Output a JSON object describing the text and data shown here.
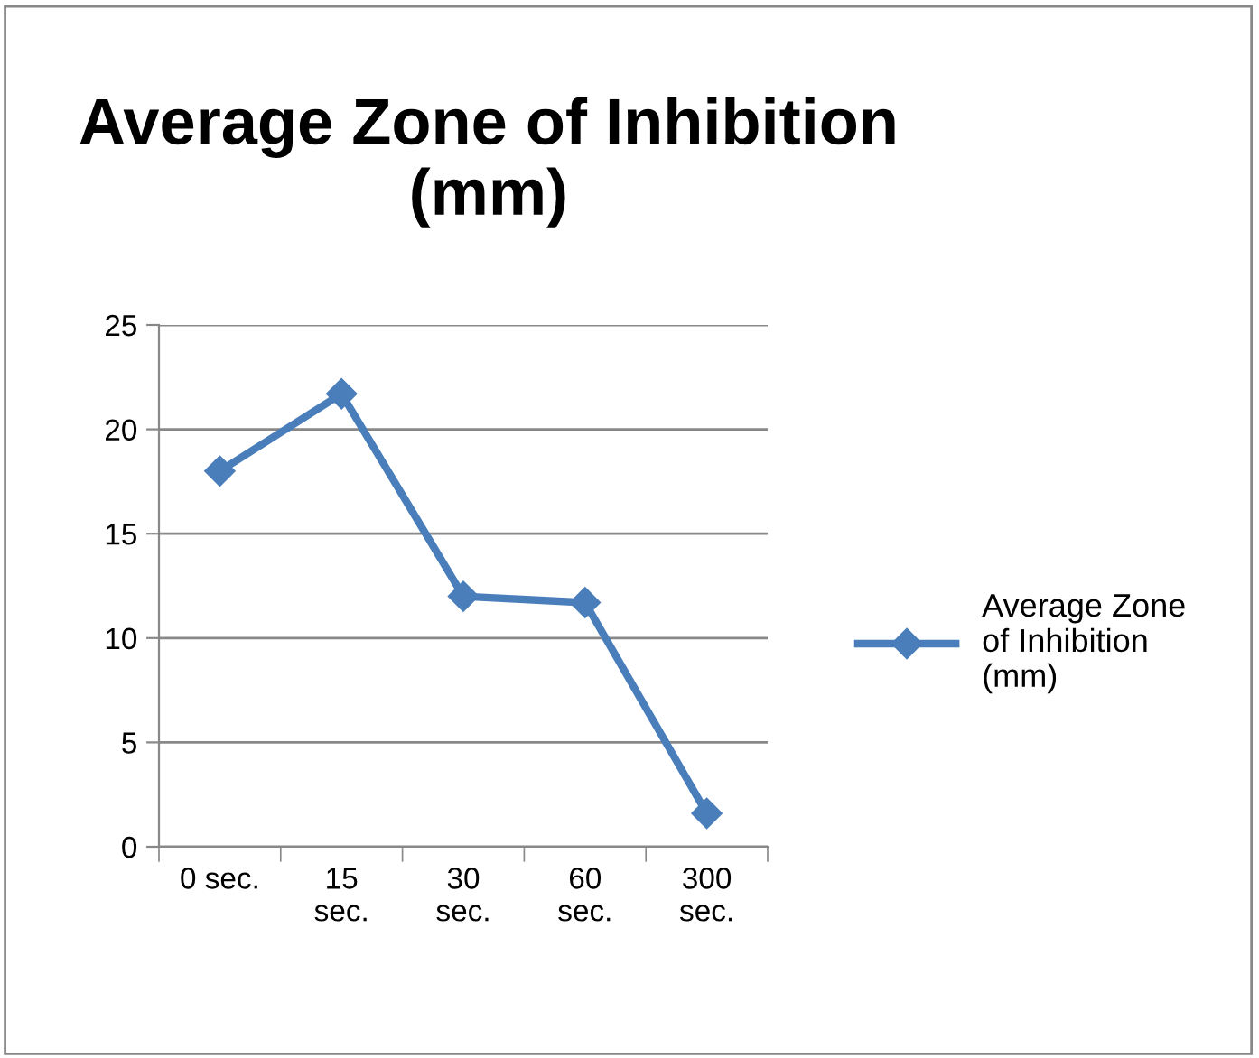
{
  "chart_data": {
    "type": "line",
    "title": "Average Zone of Inhibition\n(mm)",
    "categories": [
      "0 sec.",
      "15\nsec.",
      "30\nsec.",
      "60\nsec.",
      "300\nsec."
    ],
    "series": [
      {
        "name": "Average Zone\nof Inhibition\n(mm)",
        "color": "#4a7ebb",
        "values": [
          18.0,
          21.7,
          12.0,
          11.7,
          1.6
        ]
      }
    ],
    "ylim": [
      0,
      25
    ],
    "yticks": [
      0,
      5,
      10,
      15,
      20,
      25
    ],
    "grid": "y",
    "legend": "right",
    "marker": "diamond",
    "line_style": "solid"
  }
}
